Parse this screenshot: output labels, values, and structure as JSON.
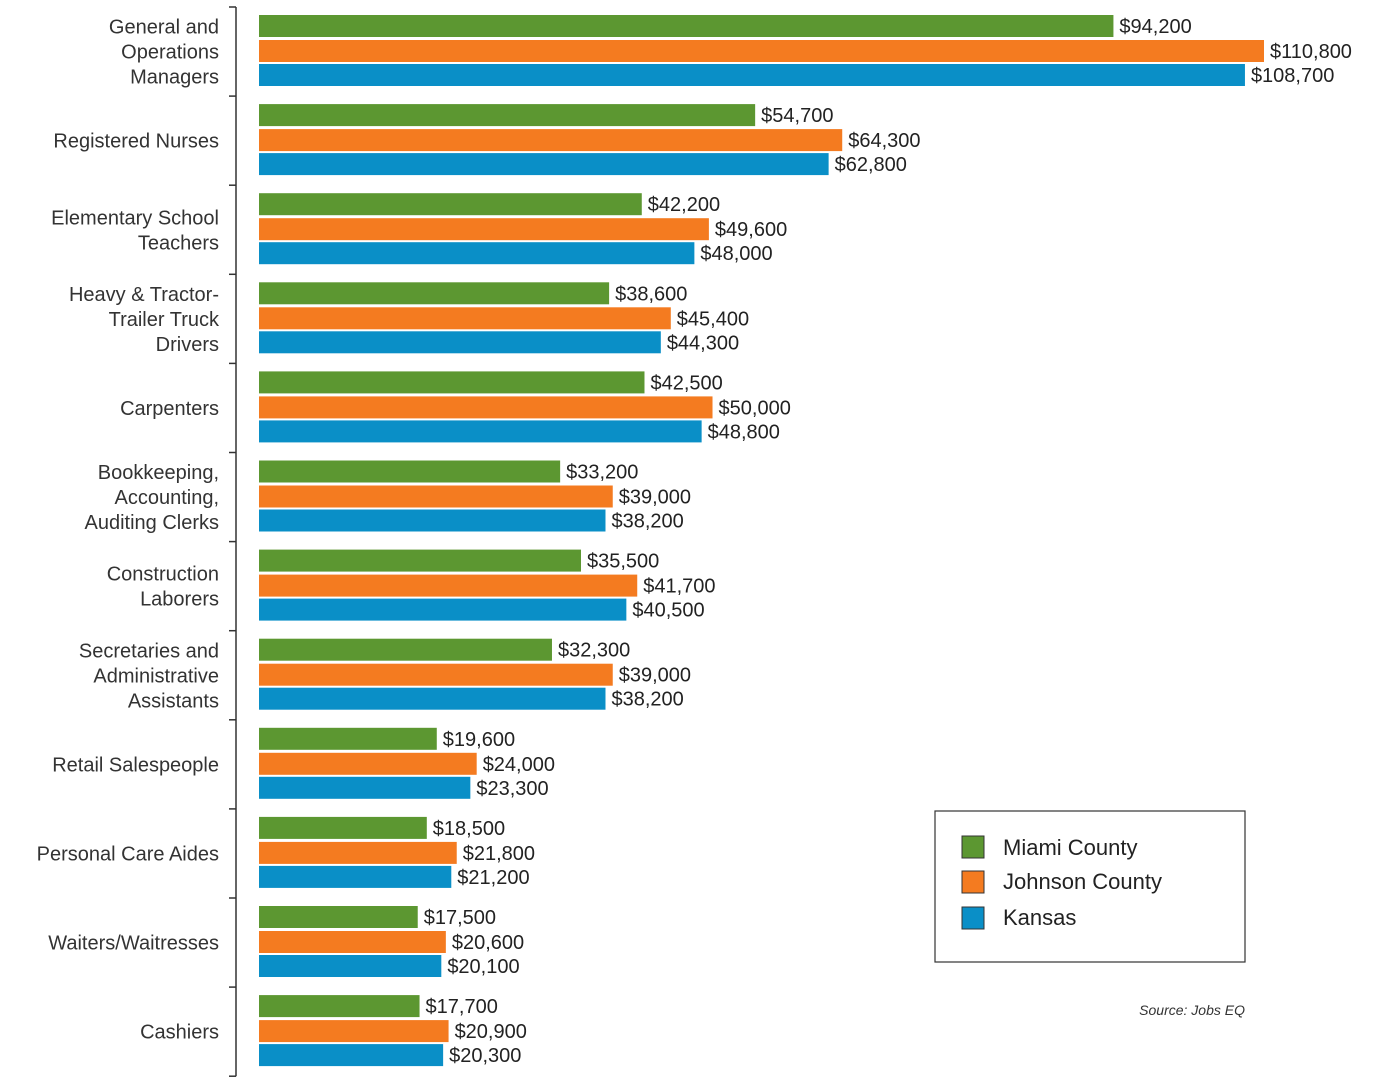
{
  "chart_data": {
    "type": "bar",
    "orientation": "horizontal",
    "categories": [
      [
        "General and",
        "Operations",
        "Managers"
      ],
      [
        "Registered Nurses"
      ],
      [
        "Elementary School",
        "Teachers"
      ],
      [
        "Heavy & Tractor-",
        "Trailer Truck",
        "Drivers"
      ],
      [
        "Carpenters"
      ],
      [
        "Bookkeeping,",
        "Accounting,",
        "Auditing Clerks"
      ],
      [
        "Construction",
        "Laborers"
      ],
      [
        "Secretaries and",
        "Administrative",
        "Assistants"
      ],
      [
        "Retail Salespeople"
      ],
      [
        "Personal Care Aides"
      ],
      [
        "Waiters/Waitresses"
      ],
      [
        "Cashiers"
      ]
    ],
    "series": [
      {
        "name": "Miami County",
        "color": "#5c9731",
        "values": [
          94200,
          54700,
          42200,
          38600,
          42500,
          33200,
          35500,
          32300,
          19600,
          18500,
          17500,
          17700
        ],
        "labels": [
          "$94,200",
          "$54,700",
          "$42,200",
          "$38,600",
          "$42,500",
          "$33,200",
          "$35,500",
          "$32,300",
          "$19,600",
          "$18,500",
          "$17,500",
          "$17,700"
        ]
      },
      {
        "name": "Johnson County",
        "color": "#f47b20",
        "values": [
          110800,
          64300,
          49600,
          45400,
          50000,
          39000,
          41700,
          39000,
          24000,
          21800,
          20600,
          20900
        ],
        "labels": [
          "$110,800",
          "$64,300",
          "$49,600",
          "$45,400",
          "$50,000",
          "$39,000",
          "$41,700",
          "$39,000",
          "$24,000",
          "$21,800",
          "$20,600",
          "$20,900"
        ]
      },
      {
        "name": "Kansas",
        "color": "#0a8fc7",
        "values": [
          108700,
          62800,
          48000,
          44300,
          48800,
          38200,
          40500,
          38200,
          23300,
          21200,
          20100,
          20300
        ],
        "labels": [
          "$108,700",
          "$62,800",
          "$48,000",
          "$44,300",
          "$48,800",
          "$38,200",
          "$40,500",
          "$38,200",
          "$23,300",
          "$21,200",
          "$20,100",
          "$20,300"
        ]
      }
    ],
    "xlim": [
      0,
      110800
    ],
    "grid": false,
    "legend": {
      "placement": "bottom-right",
      "entries": [
        "Miami County",
        "Johnson County",
        "Kansas"
      ]
    },
    "source": "Source: Jobs EQ"
  }
}
